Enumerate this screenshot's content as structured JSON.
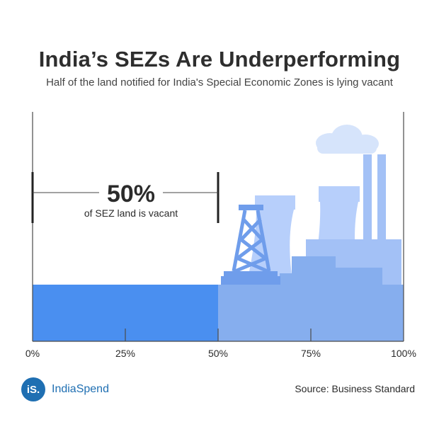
{
  "header": {
    "title": "India’s SEZs Are Underperforming",
    "subtitle": "Half of the land notified for India's Special Economic Zones is lying vacant"
  },
  "chart_data": {
    "type": "bar",
    "orientation": "horizontal",
    "title": "India’s SEZs Are Underperforming",
    "subtitle": "Half of the land notified for India's Special Economic Zones is lying vacant",
    "xlabel": "",
    "ylabel": "",
    "xlim": [
      0,
      100
    ],
    "x_ticks": [
      0,
      25,
      50,
      75,
      100
    ],
    "x_tick_labels": [
      "0%",
      "25%",
      "50%",
      "75%",
      "100%"
    ],
    "values": [
      50,
      50
    ],
    "colors": [
      "#4a8ff0",
      "#86aeee"
    ],
    "annotation": {
      "value": "50%",
      "text": "of SEZ land is vacant",
      "span": [
        0,
        50
      ]
    },
    "illustration_colors": {
      "background_layer": "#b7cffb",
      "mid_layer": "#a3c1f6",
      "front_layer": "#86aeee",
      "oil_rig": "#6f9deb",
      "cloud": "#d6e4fb"
    },
    "grid": false
  },
  "footer": {
    "logo_mark": "iS.",
    "logo_text": "IndiaSpend",
    "source": "Source: Business Standard"
  }
}
